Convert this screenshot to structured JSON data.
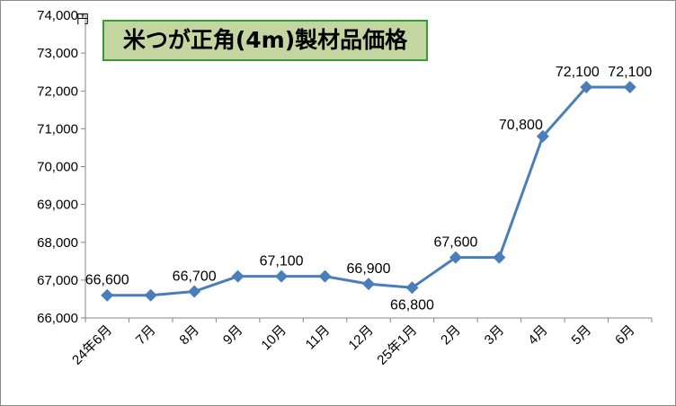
{
  "chart_data": {
    "type": "line",
    "title": "米つが正角(4m)製材品価格",
    "ylabel": "円",
    "xlabel": "",
    "categories": [
      "24年6月",
      "7月",
      "8月",
      "9月",
      "10月",
      "11月",
      "12月",
      "25年1月",
      "2月",
      "3月",
      "4月",
      "5月",
      "6月"
    ],
    "series": [
      {
        "values": [
          66600,
          66600,
          66700,
          67100,
          67100,
          67100,
          66900,
          66800,
          67600,
          67600,
          70800,
          72100,
          72100
        ],
        "color": "#4a7ebb"
      }
    ],
    "data_labels": [
      {
        "index": 0,
        "text": "66,600"
      },
      {
        "index": 2,
        "text": "66,700"
      },
      {
        "index": 4,
        "text": "67,100"
      },
      {
        "index": 6,
        "text": "66,900"
      },
      {
        "index": 7,
        "text": "66,800"
      },
      {
        "index": 8,
        "text": "67,600"
      },
      {
        "index": 10,
        "text": "70,800"
      },
      {
        "index": 11,
        "text": "72,100"
      },
      {
        "index": 12,
        "text": "72,100"
      }
    ],
    "ylim": [
      66000,
      74000
    ],
    "yticks": [
      66000,
      67000,
      68000,
      69000,
      70000,
      71000,
      72000,
      73000,
      74000
    ],
    "ytick_labels": [
      "66,000",
      "67,000",
      "68,000",
      "69,000",
      "70,000",
      "71,000",
      "72,000",
      "73,000",
      "74,000"
    ],
    "grid": false,
    "marker": "diamond",
    "title_box_color": "#c4d6a0",
    "title_border_color": "#3a9a3a"
  }
}
